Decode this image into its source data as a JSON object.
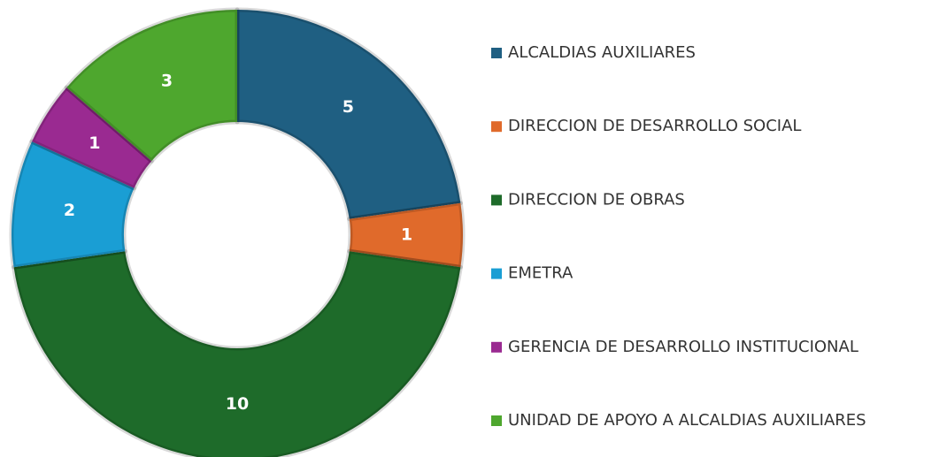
{
  "chart_data": {
    "type": "donut",
    "categories": [
      "ALCALDIAS AUXILIARES",
      "DIRECCION DE DESARROLLO SOCIAL",
      "DIRECCION DE OBRAS",
      "EMETRA",
      "GERENCIA DE DESARROLLO INSTITUCIONAL",
      "UNIDAD DE APOYO A ALCALDIAS AUXILIARES"
    ],
    "values": [
      5,
      1,
      10,
      2,
      1,
      3
    ],
    "colors": [
      "#1f5f82",
      "#e06a2b",
      "#1e6b2a",
      "#1a9ed4",
      "#9a2a91",
      "#4ea72e"
    ],
    "legend": "right"
  }
}
